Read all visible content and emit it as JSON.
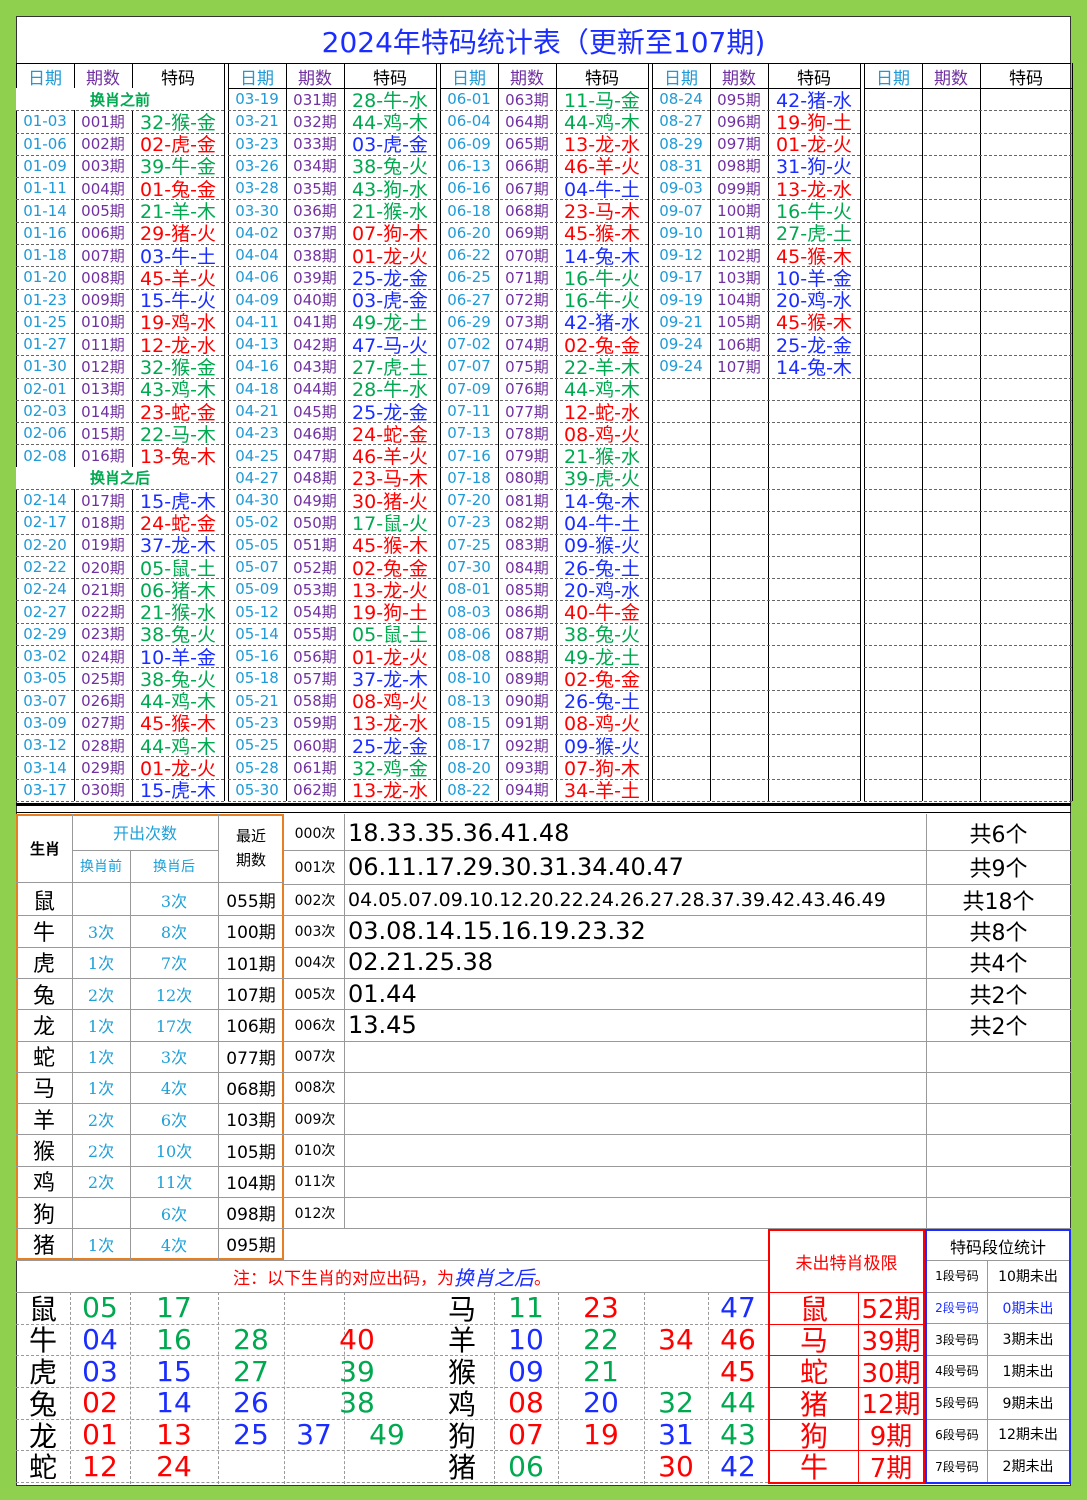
{
  "title": "2024年特码统计表（更新至107期)",
  "colors": {
    "r": "#ff0000",
    "g": "#00a850",
    "b": "#1a2cff"
  },
  "draw_table": {
    "headers": [
      "日期",
      "期数",
      "特码"
    ],
    "columns": [
      [
        "换肖之前",
        [
          "01-03",
          "001期",
          "32-猴-金",
          "g"
        ],
        [
          "01-06",
          "002期",
          "02-虎-金",
          "r"
        ],
        [
          "01-09",
          "003期",
          "39-牛-金",
          "g"
        ],
        [
          "01-11",
          "004期",
          "01-兔-金",
          "r"
        ],
        [
          "01-14",
          "005期",
          "21-羊-木",
          "g"
        ],
        [
          "01-16",
          "006期",
          "29-猪-火",
          "r"
        ],
        [
          "01-18",
          "007期",
          "03-牛-土",
          "b"
        ],
        [
          "01-20",
          "008期",
          "45-羊-火",
          "r"
        ],
        [
          "01-23",
          "009期",
          "15-牛-火",
          "b"
        ],
        [
          "01-25",
          "010期",
          "19-鸡-水",
          "r"
        ],
        [
          "01-27",
          "011期",
          "12-龙-水",
          "r"
        ],
        [
          "01-30",
          "012期",
          "32-猴-金",
          "g"
        ],
        [
          "02-01",
          "013期",
          "43-鸡-木",
          "g"
        ],
        [
          "02-03",
          "014期",
          "23-蛇-金",
          "r"
        ],
        [
          "02-06",
          "015期",
          "22-马-木",
          "g"
        ],
        [
          "02-08",
          "016期",
          "13-兔-木",
          "r"
        ],
        "换肖之后",
        [
          "02-14",
          "017期",
          "15-虎-木",
          "b"
        ],
        [
          "02-17",
          "018期",
          "24-蛇-金",
          "r"
        ],
        [
          "02-20",
          "019期",
          "37-龙-木",
          "b"
        ],
        [
          "02-22",
          "020期",
          "05-鼠-土",
          "g"
        ],
        [
          "02-24",
          "021期",
          "06-猪-木",
          "g"
        ],
        [
          "02-27",
          "022期",
          "21-猴-水",
          "g"
        ],
        [
          "02-29",
          "023期",
          "38-兔-火",
          "g"
        ],
        [
          "03-02",
          "024期",
          "10-羊-金",
          "b"
        ],
        [
          "03-05",
          "025期",
          "38-兔-火",
          "g"
        ],
        [
          "03-07",
          "026期",
          "44-鸡-木",
          "g"
        ],
        [
          "03-09",
          "027期",
          "45-猴-木",
          "r"
        ],
        [
          "03-12",
          "028期",
          "44-鸡-木",
          "g"
        ],
        [
          "03-14",
          "029期",
          "01-龙-火",
          "r"
        ],
        [
          "03-17",
          "030期",
          "15-虎-木",
          "b"
        ]
      ],
      [
        [
          "03-19",
          "031期",
          "28-牛-水",
          "g"
        ],
        [
          "03-21",
          "032期",
          "44-鸡-木",
          "g"
        ],
        [
          "03-23",
          "033期",
          "03-虎-金",
          "b"
        ],
        [
          "03-26",
          "034期",
          "38-兔-火",
          "g"
        ],
        [
          "03-28",
          "035期",
          "43-狗-水",
          "g"
        ],
        [
          "03-30",
          "036期",
          "21-猴-水",
          "g"
        ],
        [
          "04-02",
          "037期",
          "07-狗-木",
          "r"
        ],
        [
          "04-04",
          "038期",
          "01-龙-火",
          "r"
        ],
        [
          "04-06",
          "039期",
          "25-龙-金",
          "b"
        ],
        [
          "04-09",
          "040期",
          "03-虎-金",
          "b"
        ],
        [
          "04-11",
          "041期",
          "49-龙-土",
          "g"
        ],
        [
          "04-13",
          "042期",
          "47-马-火",
          "b"
        ],
        [
          "04-16",
          "043期",
          "27-虎-土",
          "g"
        ],
        [
          "04-18",
          "044期",
          "28-牛-水",
          "g"
        ],
        [
          "04-21",
          "045期",
          "25-龙-金",
          "b"
        ],
        [
          "04-23",
          "046期",
          "24-蛇-金",
          "r"
        ],
        [
          "04-25",
          "047期",
          "46-羊-火",
          "r"
        ],
        [
          "04-27",
          "048期",
          "23-马-木",
          "r"
        ],
        [
          "04-30",
          "049期",
          "30-猪-火",
          "r"
        ],
        [
          "05-02",
          "050期",
          "17-鼠-火",
          "g"
        ],
        [
          "05-05",
          "051期",
          "45-猴-木",
          "r"
        ],
        [
          "05-07",
          "052期",
          "02-兔-金",
          "r"
        ],
        [
          "05-09",
          "053期",
          "13-龙-火",
          "r"
        ],
        [
          "05-12",
          "054期",
          "19-狗-土",
          "r"
        ],
        [
          "05-14",
          "055期",
          "05-鼠-土",
          "g"
        ],
        [
          "05-16",
          "056期",
          "01-龙-火",
          "r"
        ],
        [
          "05-18",
          "057期",
          "37-龙-木",
          "b"
        ],
        [
          "05-21",
          "058期",
          "08-鸡-火",
          "r"
        ],
        [
          "05-23",
          "059期",
          "13-龙-水",
          "r"
        ],
        [
          "05-25",
          "060期",
          "25-龙-金",
          "b"
        ],
        [
          "05-28",
          "061期",
          "32-鸡-金",
          "g"
        ],
        [
          "05-30",
          "062期",
          "13-龙-水",
          "r"
        ]
      ],
      [
        [
          "06-01",
          "063期",
          "11-马-金",
          "g"
        ],
        [
          "06-04",
          "064期",
          "44-鸡-木",
          "g"
        ],
        [
          "06-09",
          "065期",
          "13-龙-水",
          "r"
        ],
        [
          "06-13",
          "066期",
          "46-羊-火",
          "r"
        ],
        [
          "06-16",
          "067期",
          "04-牛-土",
          "b"
        ],
        [
          "06-18",
          "068期",
          "23-马-木",
          "r"
        ],
        [
          "06-20",
          "069期",
          "45-猴-木",
          "r"
        ],
        [
          "06-22",
          "070期",
          "14-兔-木",
          "b"
        ],
        [
          "06-25",
          "071期",
          "16-牛-火",
          "g"
        ],
        [
          "06-27",
          "072期",
          "16-牛-火",
          "g"
        ],
        [
          "06-29",
          "073期",
          "42-猪-水",
          "b"
        ],
        [
          "07-02",
          "074期",
          "02-兔-金",
          "r"
        ],
        [
          "07-07",
          "075期",
          "22-羊-木",
          "g"
        ],
        [
          "07-09",
          "076期",
          "44-鸡-木",
          "g"
        ],
        [
          "07-11",
          "077期",
          "12-蛇-水",
          "r"
        ],
        [
          "07-13",
          "078期",
          "08-鸡-火",
          "r"
        ],
        [
          "07-16",
          "079期",
          "21-猴-水",
          "g"
        ],
        [
          "07-18",
          "080期",
          "39-虎-火",
          "g"
        ],
        [
          "07-20",
          "081期",
          "14-兔-木",
          "b"
        ],
        [
          "07-23",
          "082期",
          "04-牛-土",
          "b"
        ],
        [
          "07-25",
          "083期",
          "09-猴-火",
          "b"
        ],
        [
          "07-30",
          "084期",
          "26-兔-土",
          "b"
        ],
        [
          "08-01",
          "085期",
          "20-鸡-水",
          "b"
        ],
        [
          "08-03",
          "086期",
          "40-牛-金",
          "r"
        ],
        [
          "08-06",
          "087期",
          "38-兔-火",
          "g"
        ],
        [
          "08-08",
          "088期",
          "49-龙-土",
          "g"
        ],
        [
          "08-10",
          "089期",
          "02-兔-金",
          "r"
        ],
        [
          "08-13",
          "090期",
          "26-兔-土",
          "b"
        ],
        [
          "08-15",
          "091期",
          "08-鸡-火",
          "r"
        ],
        [
          "08-17",
          "092期",
          "09-猴-火",
          "b"
        ],
        [
          "08-20",
          "093期",
          "07-狗-木",
          "r"
        ],
        [
          "08-22",
          "094期",
          "34-羊-土",
          "r"
        ]
      ],
      [
        [
          "08-24",
          "095期",
          "42-猪-水",
          "b"
        ],
        [
          "08-27",
          "096期",
          "19-狗-土",
          "r"
        ],
        [
          "08-29",
          "097期",
          "01-龙-火",
          "r"
        ],
        [
          "08-31",
          "098期",
          "31-狗-火",
          "b"
        ],
        [
          "09-03",
          "099期",
          "13-龙-水",
          "r"
        ],
        [
          "09-07",
          "100期",
          "16-牛-火",
          "g"
        ],
        [
          "09-10",
          "101期",
          "27-虎-土",
          "g"
        ],
        [
          "09-12",
          "102期",
          "45-猴-木",
          "r"
        ],
        [
          "09-17",
          "103期",
          "10-羊-金",
          "b"
        ],
        [
          "09-19",
          "104期",
          "20-鸡-水",
          "b"
        ],
        [
          "09-21",
          "105期",
          "45-猴-木",
          "r"
        ],
        [
          "09-24",
          "106期",
          "25-龙-金",
          "b"
        ],
        [
          "09-24",
          "107期",
          "14-兔-木",
          "b"
        ]
      ],
      []
    ]
  },
  "zodiac_table": {
    "zodiac": "生肖",
    "count": "开出次数",
    "before": "换肖前",
    "after": "换肖后",
    "latest": "最近期数",
    "rows": [
      [
        "鼠",
        null,
        "3次",
        "055期"
      ],
      [
        "牛",
        "3次",
        "8次",
        "100期"
      ],
      [
        "虎",
        "1次",
        "7次",
        "101期"
      ],
      [
        "兔",
        "2次",
        "12次",
        "107期"
      ],
      [
        "龙",
        "1次",
        "17次",
        "106期"
      ],
      [
        "蛇",
        "1次",
        "3次",
        "077期"
      ],
      [
        "马",
        "1次",
        "4次",
        "068期"
      ],
      [
        "羊",
        "2次",
        "6次",
        "103期"
      ],
      [
        "猴",
        "2次",
        "10次",
        "105期"
      ],
      [
        "鸡",
        "2次",
        "11次",
        "104期"
      ],
      [
        "狗",
        null,
        "6次",
        "098期"
      ],
      [
        "猪",
        "1次",
        "4次",
        "095期"
      ]
    ]
  },
  "times_table": {
    "rows": [
      [
        "000次",
        "18.33.35.36.41.48",
        "共6个"
      ],
      [
        "001次",
        "06.11.17.29.30.31.34.40.47",
        "共9个"
      ],
      [
        "002次",
        "04.05.07.09.10.12.20.22.24.26.27.28.37.39.42.43.46.49",
        "共18个"
      ],
      [
        "003次",
        "03.08.14.15.16.19.23.32",
        "共8个"
      ],
      [
        "004次",
        "02.21.25.38",
        "共4个"
      ],
      [
        "005次",
        "01.44",
        "共2个"
      ],
      [
        "006次",
        "13.45",
        "共2个"
      ],
      [
        "007次",
        null,
        null
      ],
      [
        "008次",
        null,
        null
      ],
      [
        "009次",
        null,
        null
      ],
      [
        "010次",
        null,
        null
      ],
      [
        "011次",
        null,
        null
      ],
      [
        "012次",
        null,
        null
      ]
    ]
  },
  "note": [
    "注：以下生肖的对应出码，为",
    "换肖之后",
    "。"
  ],
  "numbers": {
    "left": [
      [
        "鼠",
        [
          [
            "05",
            "g"
          ],
          [
            "17",
            "g"
          ]
        ]
      ],
      [
        "牛",
        [
          [
            "04",
            "b"
          ],
          [
            "16",
            "g"
          ],
          [
            "28",
            "g"
          ],
          [
            "40",
            "r"
          ]
        ]
      ],
      [
        "虎",
        [
          [
            "03",
            "b"
          ],
          [
            "15",
            "b"
          ],
          [
            "27",
            "g"
          ],
          [
            "39",
            "g"
          ]
        ]
      ],
      [
        "兔",
        [
          [
            "02",
            "r"
          ],
          [
            "14",
            "b"
          ],
          [
            "26",
            "b"
          ],
          [
            "38",
            "g"
          ]
        ]
      ],
      [
        "龙",
        [
          [
            "01",
            "r"
          ],
          [
            "13",
            "r"
          ],
          [
            "25",
            "b"
          ],
          [
            "37",
            "b"
          ],
          [
            "49",
            "g"
          ]
        ]
      ],
      [
        "蛇",
        [
          [
            "12",
            "r"
          ],
          [
            "24",
            "r"
          ]
        ]
      ]
    ],
    "right": [
      [
        "马",
        [
          [
            "11",
            "g"
          ],
          [
            "23",
            "r"
          ],
          null,
          [
            "47",
            "b"
          ]
        ]
      ],
      [
        "羊",
        [
          [
            "10",
            "b"
          ],
          [
            "22",
            "g"
          ],
          [
            "34",
            "r"
          ],
          [
            "46",
            "r"
          ]
        ]
      ],
      [
        "猴",
        [
          [
            "09",
            "b"
          ],
          [
            "21",
            "g"
          ],
          null,
          [
            "45",
            "r"
          ]
        ]
      ],
      [
        "鸡",
        [
          [
            "08",
            "r"
          ],
          [
            "20",
            "b"
          ],
          [
            "32",
            "g"
          ],
          [
            "44",
            "g"
          ]
        ]
      ],
      [
        "狗",
        [
          [
            "07",
            "r"
          ],
          [
            "19",
            "r"
          ],
          [
            "31",
            "b"
          ],
          [
            "43",
            "g"
          ]
        ]
      ],
      [
        "猪",
        [
          [
            "06",
            "g"
          ],
          null,
          [
            "30",
            "r"
          ],
          [
            "42",
            "b"
          ]
        ]
      ]
    ]
  },
  "missing": {
    "title": "未出特肖极限",
    "rows": [
      [
        "鼠",
        "52期"
      ],
      [
        "马",
        "39期"
      ],
      [
        "蛇",
        "30期"
      ],
      [
        "猪",
        "12期"
      ],
      [
        "狗",
        "9期"
      ],
      [
        "牛",
        "7期"
      ]
    ]
  },
  "segments": {
    "title": "特码段位统计",
    "rows": [
      [
        "1段号码",
        "10期未出"
      ],
      [
        "2段号码",
        "0期未出"
      ],
      [
        "3段号码",
        "3期未出"
      ],
      [
        "4段号码",
        "1期未出"
      ],
      [
        "5段号码",
        "9期未出"
      ],
      [
        "6段号码",
        "12期未出"
      ],
      [
        "7段号码",
        "2期未出"
      ]
    ]
  }
}
